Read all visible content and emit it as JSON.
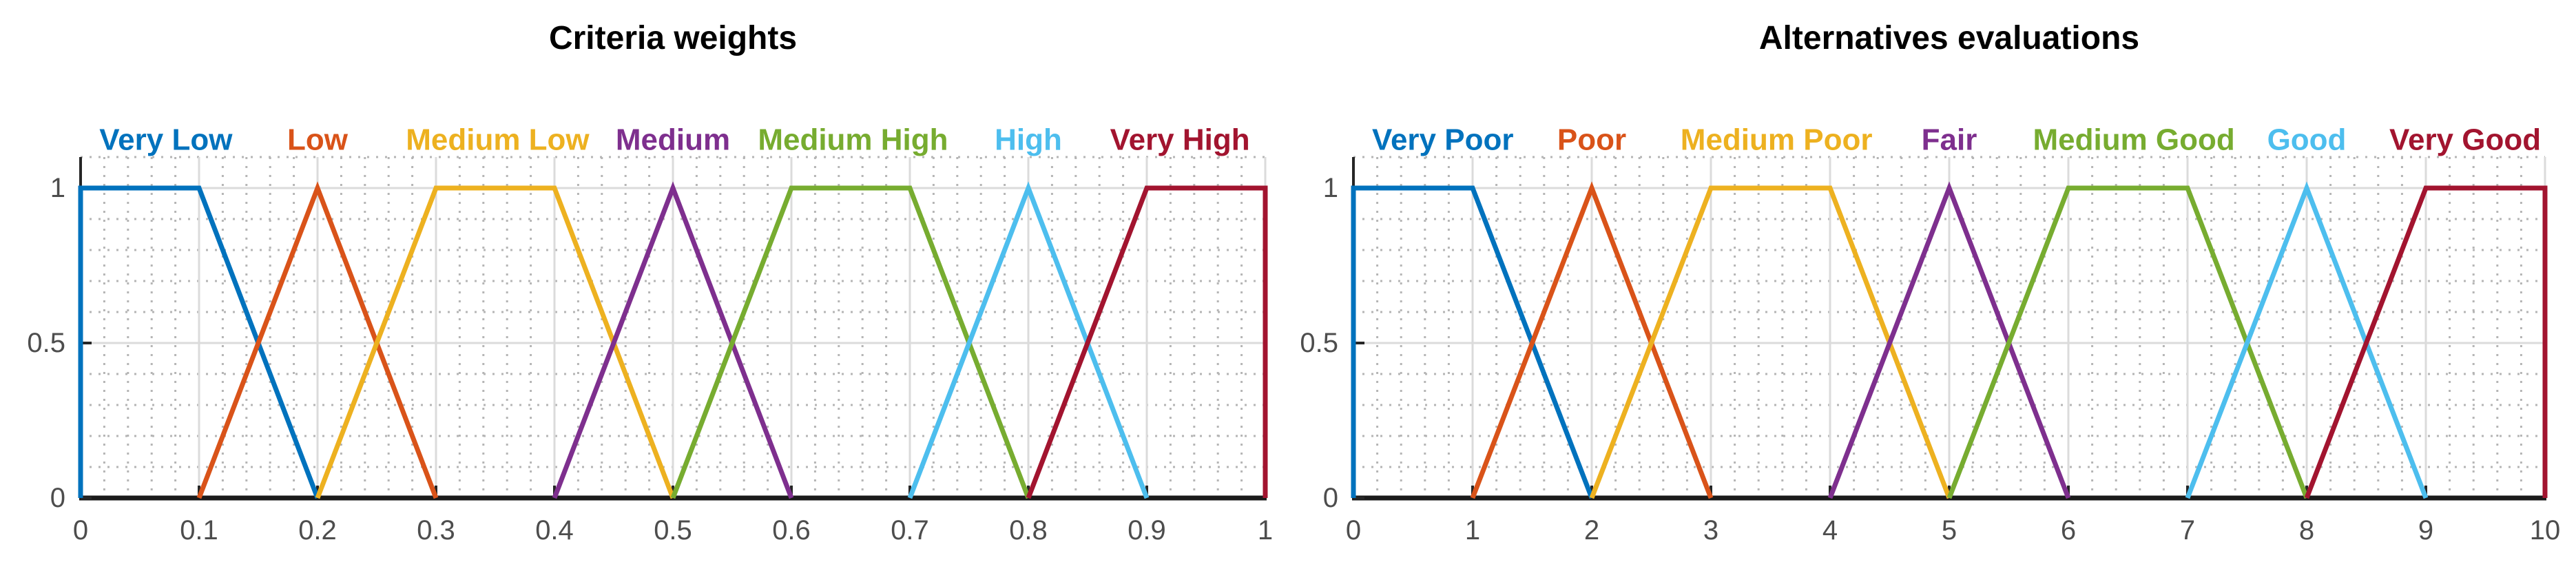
{
  "figure": {
    "background": "#ffffff",
    "style": {
      "x_axis_color": "#1a1a1a",
      "y_axis_color": "#262626",
      "tick_color": "#262626",
      "tick_label_color": "#4d4d4d",
      "major_grid_color": "#dbdbdb",
      "minor_grid_color": "#b5b5b5",
      "title_color": "#000000"
    }
  },
  "chart_data": [
    {
      "type": "line",
      "title": "Criteria weights",
      "xlabel": "",
      "ylabel": "",
      "xlim": [
        0,
        1
      ],
      "ylim": [
        0,
        1.1
      ],
      "grid": "on",
      "minor_grid": "on",
      "legend_position": "colored-labels-above-plot",
      "x_tick_values": [
        0,
        0.1,
        0.2,
        0.3,
        0.4,
        0.5,
        0.6,
        0.7,
        0.8,
        0.9,
        1
      ],
      "x_tick_labels": [
        "0",
        "0.1",
        "0.2",
        "0.3",
        "0.4",
        "0.5",
        "0.6",
        "0.7",
        "0.8",
        "0.9",
        "1"
      ],
      "y_tick_values": [
        0,
        0.5,
        1
      ],
      "y_tick_labels": [
        "0",
        "0.5",
        "1"
      ],
      "y_major_grid_values": [
        0.5,
        1
      ],
      "minor_x_step": 0.02,
      "minor_y_step": 0.1,
      "series": [
        {
          "name": "Very Low",
          "color": "#0072BD",
          "label_x": 0.072,
          "points": [
            [
              0,
              0
            ],
            [
              0,
              1
            ],
            [
              0.1,
              1
            ],
            [
              0.2,
              0
            ]
          ]
        },
        {
          "name": "Low",
          "color": "#D95319",
          "label_x": 0.2,
          "points": [
            [
              0.1,
              0
            ],
            [
              0.2,
              1
            ],
            [
              0.3,
              0
            ]
          ]
        },
        {
          "name": "Medium Low",
          "color": "#EDB120",
          "label_x": 0.352,
          "points": [
            [
              0.2,
              0
            ],
            [
              0.3,
              1
            ],
            [
              0.4,
              1
            ],
            [
              0.5,
              0
            ]
          ]
        },
        {
          "name": "Medium",
          "color": "#7E2F8E",
          "label_x": 0.5,
          "points": [
            [
              0.4,
              0
            ],
            [
              0.5,
              1
            ],
            [
              0.6,
              0
            ]
          ]
        },
        {
          "name": "Medium High",
          "color": "#77AC30",
          "label_x": 0.652,
          "points": [
            [
              0.5,
              0
            ],
            [
              0.6,
              1
            ],
            [
              0.7,
              1
            ],
            [
              0.8,
              0
            ]
          ]
        },
        {
          "name": "High",
          "color": "#4DBEEE",
          "label_x": 0.8,
          "points": [
            [
              0.7,
              0
            ],
            [
              0.8,
              1
            ],
            [
              0.9,
              0
            ]
          ]
        },
        {
          "name": "Very High",
          "color": "#A2142F",
          "label_x": 0.928,
          "points": [
            [
              0.8,
              0
            ],
            [
              0.9,
              1
            ],
            [
              1,
              1
            ],
            [
              1,
              0
            ]
          ]
        }
      ]
    },
    {
      "type": "line",
      "title": "Alternatives evaluations",
      "xlabel": "",
      "ylabel": "",
      "xlim": [
        0,
        10
      ],
      "ylim": [
        0,
        1.1
      ],
      "grid": "on",
      "minor_grid": "on",
      "legend_position": "colored-labels-above-plot",
      "x_tick_values": [
        0,
        1,
        2,
        3,
        4,
        5,
        6,
        7,
        8,
        9,
        10
      ],
      "x_tick_labels": [
        "0",
        "1",
        "2",
        "3",
        "4",
        "5",
        "6",
        "7",
        "8",
        "9",
        "10"
      ],
      "y_tick_values": [
        0,
        0.5,
        1
      ],
      "y_tick_labels": [
        "0",
        "0.5",
        "1"
      ],
      "y_major_grid_values": [
        0.5,
        1
      ],
      "minor_x_step": 0.2,
      "minor_y_step": 0.1,
      "series": [
        {
          "name": "Very Poor",
          "color": "#0072BD",
          "label_x": 0.75,
          "points": [
            [
              0,
              0
            ],
            [
              0,
              1
            ],
            [
              1,
              1
            ],
            [
              2,
              0
            ]
          ]
        },
        {
          "name": "Poor",
          "color": "#D95319",
          "label_x": 2,
          "points": [
            [
              1,
              0
            ],
            [
              2,
              1
            ],
            [
              3,
              0
            ]
          ]
        },
        {
          "name": "Medium Poor",
          "color": "#EDB120",
          "label_x": 3.55,
          "points": [
            [
              2,
              0
            ],
            [
              3,
              1
            ],
            [
              4,
              1
            ],
            [
              5,
              0
            ]
          ]
        },
        {
          "name": "Fair",
          "color": "#7E2F8E",
          "label_x": 5,
          "points": [
            [
              4,
              0
            ],
            [
              5,
              1
            ],
            [
              6,
              0
            ]
          ]
        },
        {
          "name": "Medium Good",
          "color": "#77AC30",
          "label_x": 6.55,
          "points": [
            [
              5,
              0
            ],
            [
              6,
              1
            ],
            [
              7,
              1
            ],
            [
              8,
              0
            ]
          ]
        },
        {
          "name": "Good",
          "color": "#4DBEEE",
          "label_x": 8,
          "points": [
            [
              7,
              0
            ],
            [
              8,
              1
            ],
            [
              9,
              0
            ]
          ]
        },
        {
          "name": "Very Good",
          "color": "#A2142F",
          "label_x": 9.33,
          "points": [
            [
              8,
              0
            ],
            [
              9,
              1
            ],
            [
              10,
              1
            ],
            [
              10,
              0
            ]
          ]
        }
      ]
    }
  ]
}
